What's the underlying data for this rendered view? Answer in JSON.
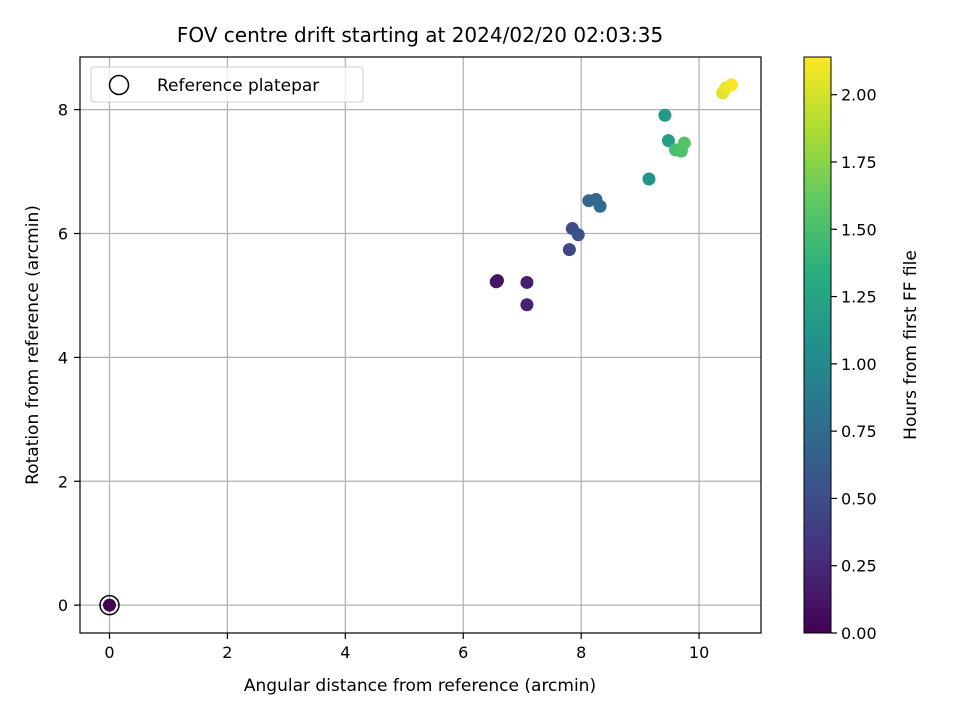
{
  "chart_data": {
    "type": "scatter",
    "title": "FOV centre drift starting at 2024/02/20 02:03:35",
    "xlabel": "Angular distance from reference (arcmin)",
    "ylabel": "Rotation from reference (arcmin)",
    "xlim": [
      -0.5,
      11.05
    ],
    "ylim": [
      -0.45,
      8.85
    ],
    "xticks": [
      0,
      2,
      4,
      6,
      8,
      10
    ],
    "yticks": [
      0,
      2,
      4,
      6,
      8
    ],
    "grid": true,
    "legend": {
      "position": "upper-left",
      "entries": [
        "Reference platepar"
      ]
    },
    "reference_point": {
      "x": 0,
      "y": 0,
      "label": "Reference platepar"
    },
    "colorbar": {
      "label": "Hours from first FF file",
      "range": [
        0.0,
        2.14
      ],
      "ticks": [
        0.0,
        0.25,
        0.5,
        0.75,
        1.0,
        1.25,
        1.5,
        1.75,
        2.0
      ],
      "tick_labels": [
        "0.00",
        "0.25",
        "0.50",
        "0.75",
        "1.00",
        "1.25",
        "1.50",
        "1.75",
        "2.00"
      ],
      "colormap": "viridis"
    },
    "points": [
      {
        "x": 0.0,
        "y": 0.0,
        "hours": 0.0
      },
      {
        "x": 6.56,
        "y": 5.22,
        "hours": 0.1
      },
      {
        "x": 6.58,
        "y": 5.24,
        "hours": 0.12
      },
      {
        "x": 7.08,
        "y": 5.21,
        "hours": 0.18
      },
      {
        "x": 7.08,
        "y": 4.85,
        "hours": 0.2
      },
      {
        "x": 7.8,
        "y": 5.74,
        "hours": 0.45
      },
      {
        "x": 7.85,
        "y": 6.08,
        "hours": 0.5
      },
      {
        "x": 7.95,
        "y": 5.98,
        "hours": 0.55
      },
      {
        "x": 8.13,
        "y": 6.53,
        "hours": 0.7
      },
      {
        "x": 8.25,
        "y": 6.55,
        "hours": 0.72
      },
      {
        "x": 8.32,
        "y": 6.44,
        "hours": 0.74
      },
      {
        "x": 9.15,
        "y": 6.88,
        "hours": 1.1
      },
      {
        "x": 9.42,
        "y": 7.91,
        "hours": 1.15
      },
      {
        "x": 9.48,
        "y": 7.5,
        "hours": 1.2
      },
      {
        "x": 9.6,
        "y": 7.35,
        "hours": 1.48
      },
      {
        "x": 9.7,
        "y": 7.33,
        "hours": 1.52
      },
      {
        "x": 9.75,
        "y": 7.46,
        "hours": 1.55
      },
      {
        "x": 10.4,
        "y": 8.27,
        "hours": 2.05
      },
      {
        "x": 10.45,
        "y": 8.35,
        "hours": 2.08
      },
      {
        "x": 10.55,
        "y": 8.4,
        "hours": 2.12
      }
    ]
  }
}
